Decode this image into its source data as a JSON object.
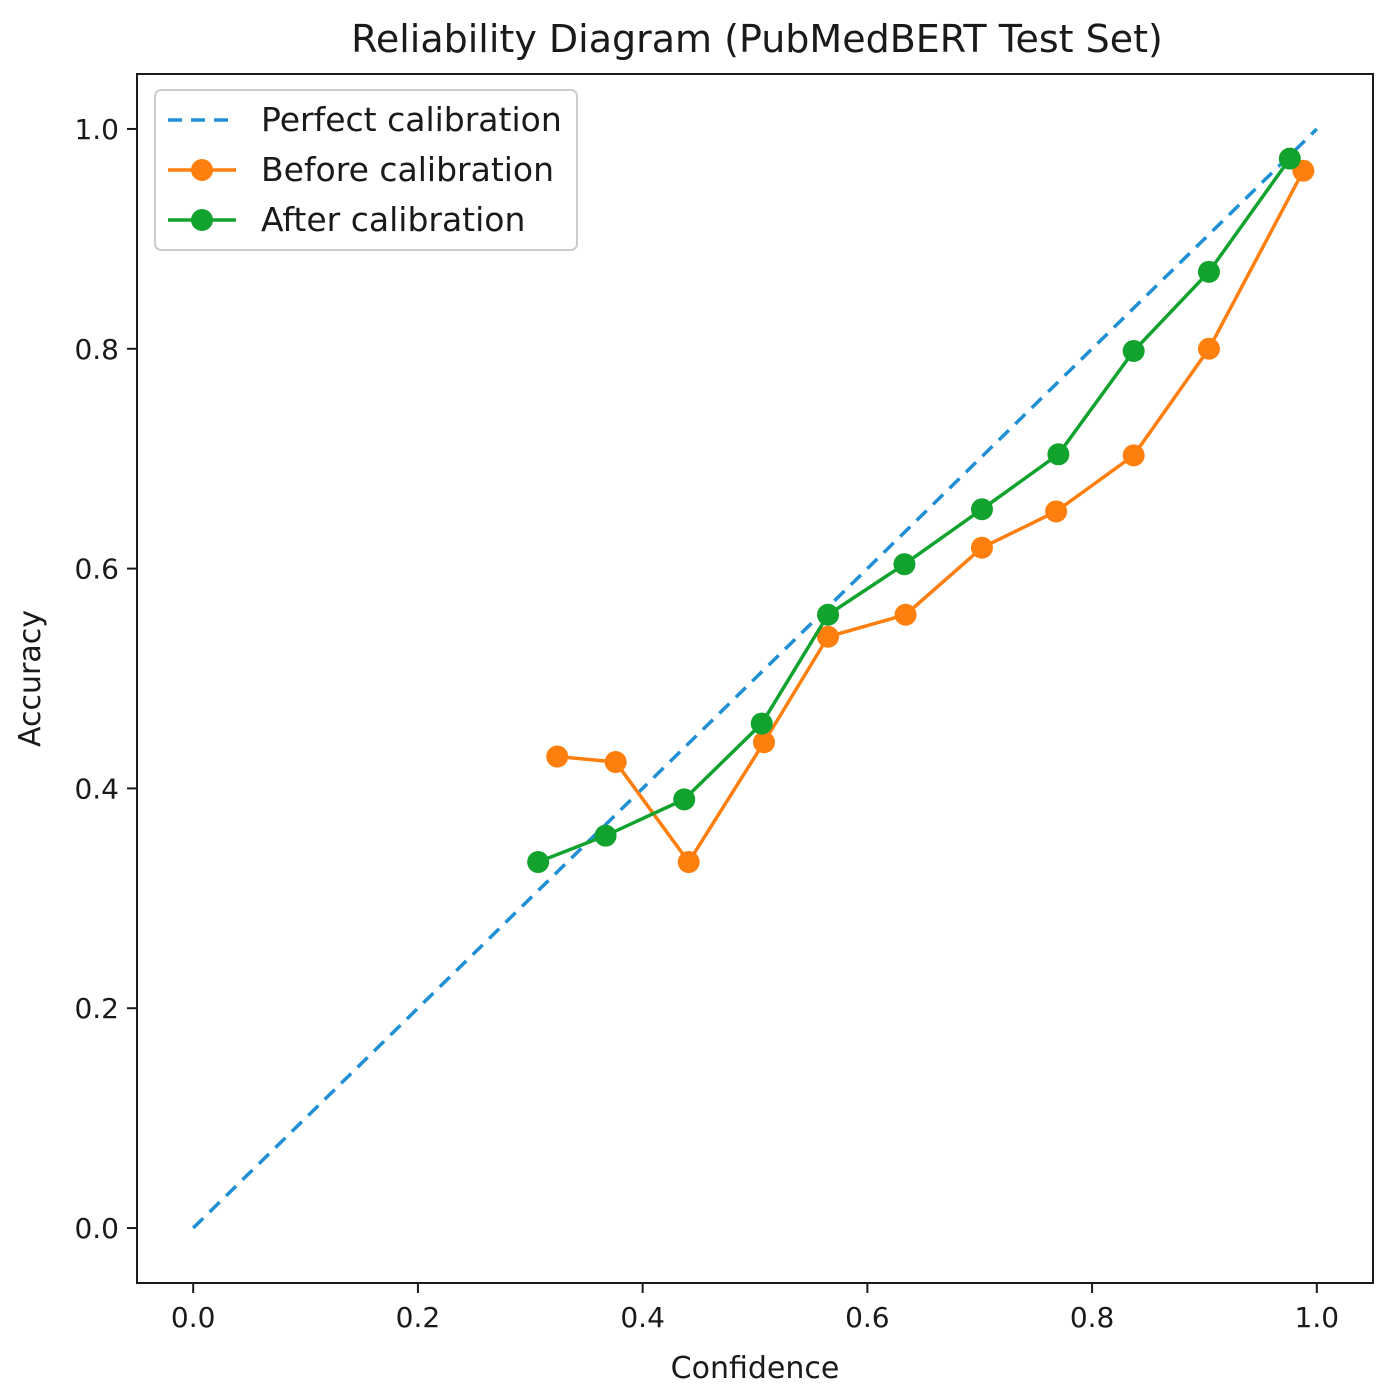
{
  "chart_data": {
    "type": "line",
    "title": "Reliability Diagram (PubMedBERT Test Set)",
    "xlabel": "Confidence",
    "ylabel": "Accuracy",
    "xlim": [
      -0.05,
      1.05
    ],
    "ylim": [
      -0.05,
      1.05
    ],
    "xticks": [
      "0.0",
      "0.2",
      "0.4",
      "0.6",
      "0.8",
      "1.0"
    ],
    "yticks": [
      "0.0",
      "0.2",
      "0.4",
      "0.6",
      "0.8",
      "1.0"
    ],
    "grid": false,
    "legend_position": "upper left",
    "series": [
      {
        "name": "Perfect calibration",
        "style": "dashed",
        "color": "#1f8fd6",
        "marker": false,
        "x": [
          0.0,
          1.0
        ],
        "y": [
          0.0,
          1.0
        ]
      },
      {
        "name": "Before calibration",
        "style": "solid",
        "color": "#ff7f0e",
        "marker": true,
        "x": [
          0.324,
          0.376,
          0.441,
          0.508,
          0.565,
          0.634,
          0.702,
          0.768,
          0.837,
          0.904,
          0.988
        ],
        "y": [
          0.429,
          0.424,
          0.333,
          0.442,
          0.538,
          0.558,
          0.619,
          0.652,
          0.703,
          0.8,
          0.962
        ]
      },
      {
        "name": "After calibration",
        "style": "solid",
        "color": "#12a32f",
        "marker": true,
        "x": [
          0.307,
          0.367,
          0.437,
          0.506,
          0.565,
          0.633,
          0.702,
          0.77,
          0.837,
          0.904,
          0.976
        ],
        "y": [
          0.333,
          0.357,
          0.39,
          0.459,
          0.558,
          0.604,
          0.654,
          0.704,
          0.798,
          0.87,
          0.973
        ]
      }
    ]
  }
}
